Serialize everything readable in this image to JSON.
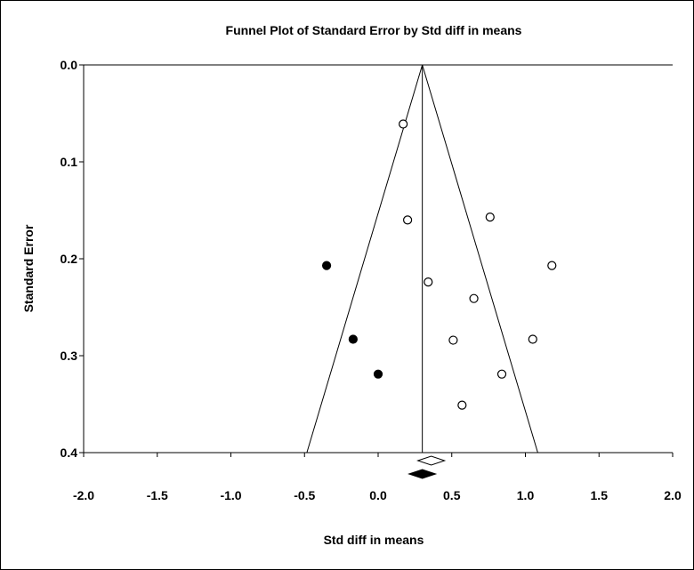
{
  "chart_data": {
    "type": "scatter",
    "title": "Funnel Plot of Standard Error by Std diff in means",
    "xlabel": "Std diff in means",
    "ylabel": "Standard Error",
    "xlim": [
      -2.0,
      2.0
    ],
    "ylim": [
      0.0,
      0.4
    ],
    "y_inverted": true,
    "x_ticks": [
      "-2.0",
      "-1.5",
      "-1.0",
      "-0.5",
      "0.0",
      "0.5",
      "1.0",
      "1.5",
      "2.0"
    ],
    "y_ticks": [
      "0.0",
      "0.1",
      "0.2",
      "0.3",
      "0.4"
    ],
    "pooled_estimate": 0.3,
    "adjusted_estimate": 0.3,
    "funnel_limits": [
      [
        -0.484,
        0.4
      ],
      [
        0.3,
        0.0
      ],
      [
        1.084,
        0.4
      ]
    ],
    "series": [
      {
        "marker": "open-circle",
        "points": [
          {
            "x": 0.17,
            "y": 0.061
          },
          {
            "x": 0.2,
            "y": 0.16
          },
          {
            "x": 0.76,
            "y": 0.157
          },
          {
            "x": 1.18,
            "y": 0.207
          },
          {
            "x": 0.34,
            "y": 0.224
          },
          {
            "x": 0.65,
            "y": 0.241
          },
          {
            "x": 0.51,
            "y": 0.284
          },
          {
            "x": 1.05,
            "y": 0.283
          },
          {
            "x": 0.84,
            "y": 0.319
          },
          {
            "x": 0.57,
            "y": 0.351
          }
        ]
      },
      {
        "marker": "filled-circle",
        "points": [
          {
            "x": -0.35,
            "y": 0.207
          },
          {
            "x": -0.17,
            "y": 0.283
          },
          {
            "x": 0.0,
            "y": 0.319
          }
        ]
      }
    ]
  }
}
